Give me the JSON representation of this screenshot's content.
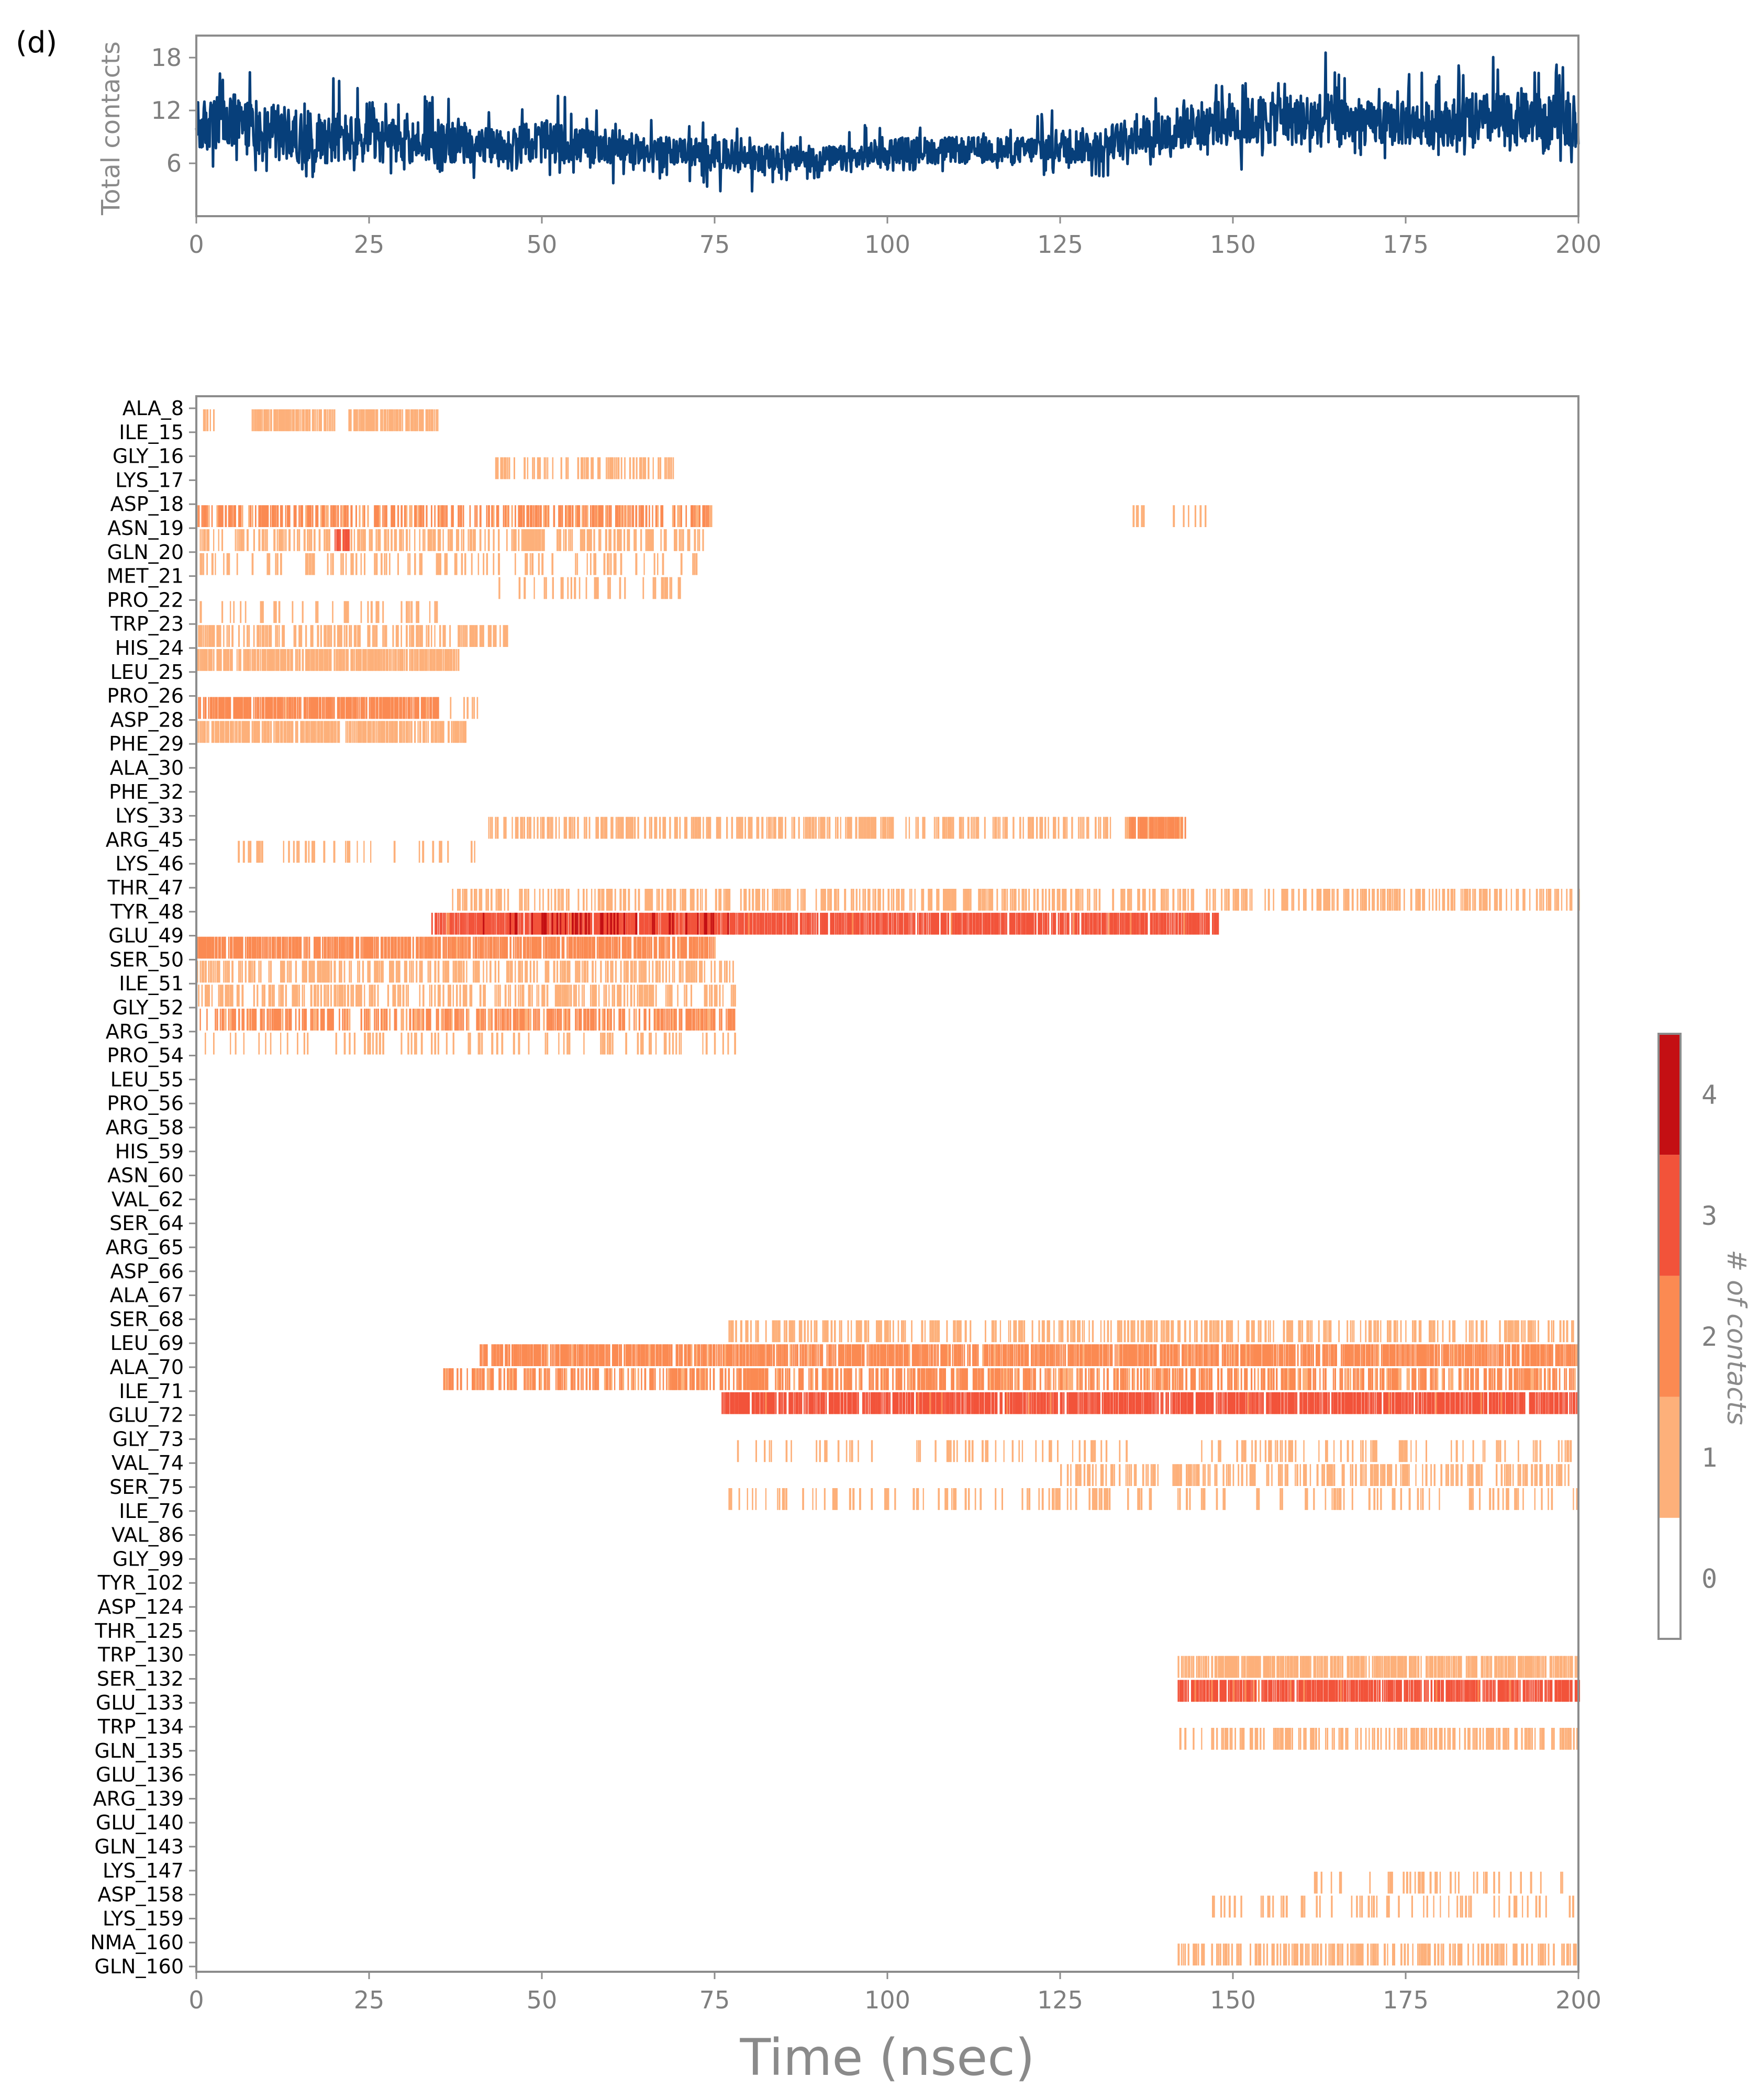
{
  "panel_label": "(d)",
  "colors": {
    "line": "#073f7a",
    "frame": "#8c8c8c",
    "tick_text": "#7f7f7f",
    "colorbar": [
      "#ffffff",
      "#fdb07a",
      "#fb8a52",
      "#f2533a",
      "#c40f13"
    ]
  },
  "chart_data": [
    {
      "type": "line",
      "title": "",
      "xlabel": "",
      "ylabel": "Total contacts",
      "xlim": [
        0,
        200
      ],
      "ylim": [
        0,
        20.5
      ],
      "xticks": [
        0,
        25,
        50,
        75,
        100,
        125,
        150,
        175,
        200
      ],
      "yticks": [
        6,
        12,
        18
      ],
      "grid": false,
      "series_envelope": {
        "x": [
          0,
          5,
          10,
          15,
          20,
          25,
          30,
          35,
          40,
          45,
          50,
          55,
          60,
          65,
          70,
          75,
          80,
          85,
          90,
          95,
          100,
          105,
          110,
          115,
          120,
          125,
          130,
          135,
          140,
          145,
          150,
          155,
          160,
          165,
          170,
          175,
          180,
          185,
          190,
          195,
          200
        ],
        "min": [
          6,
          5,
          5,
          4,
          5,
          4,
          5,
          3,
          4,
          5,
          4,
          5,
          3,
          4,
          4,
          3,
          2,
          4,
          4,
          5,
          5,
          5,
          5,
          5,
          4,
          5,
          4,
          5,
          6,
          6,
          5,
          6,
          6,
          7,
          6,
          6,
          7,
          6,
          6,
          7,
          5
        ],
        "max": [
          18,
          19,
          17,
          16,
          16,
          14,
          14,
          14,
          13,
          13,
          15,
          13,
          12,
          12,
          11,
          11,
          10,
          10,
          10,
          10,
          11,
          11,
          10,
          11,
          11,
          14,
          14,
          15,
          15,
          17,
          17,
          18,
          20,
          18,
          18,
          17,
          17,
          18,
          19,
          18,
          16
        ],
        "typical_low": [
          7,
          7,
          7,
          6,
          6,
          6,
          6,
          6,
          6,
          6,
          6,
          6,
          6,
          6,
          6,
          5,
          5,
          5,
          5,
          5,
          6,
          6,
          6,
          6,
          6,
          6,
          6,
          7,
          7,
          8,
          8,
          8,
          8,
          8,
          8,
          8,
          8,
          8,
          8,
          8,
          8
        ],
        "typical_high": [
          13,
          14,
          13,
          12,
          12,
          11,
          11,
          11,
          10,
          10,
          11,
          10,
          10,
          9,
          9,
          9,
          8,
          8,
          8,
          8,
          9,
          9,
          9,
          9,
          9,
          10,
          10,
          11,
          12,
          13,
          13,
          14,
          14,
          14,
          13,
          13,
          13,
          14,
          14,
          14,
          13
        ]
      }
    },
    {
      "type": "heatmap",
      "title": "",
      "xlabel": "Time (nsec)",
      "ylabel": "",
      "xlim": [
        0,
        200
      ],
      "xticks": [
        0,
        25,
        50,
        75,
        100,
        125,
        150,
        175,
        200
      ],
      "rows": [
        "ALA_8",
        "ILE_15",
        "GLY_16",
        "LYS_17",
        "ASP_18",
        "ASN_19",
        "GLN_20",
        "MET_21",
        "PRO_22",
        "TRP_23",
        "HIS_24",
        "LEU_25",
        "PRO_26",
        "ASP_28",
        "PHE_29",
        "ALA_30",
        "PHE_32",
        "LYS_33",
        "ARG_45",
        "LYS_46",
        "THR_47",
        "TYR_48",
        "GLU_49",
        "SER_50",
        "ILE_51",
        "GLY_52",
        "ARG_53",
        "PRO_54",
        "LEU_55",
        "PRO_56",
        "ARG_58",
        "HIS_59",
        "ASN_60",
        "VAL_62",
        "SER_64",
        "ARG_65",
        "ASP_66",
        "ALA_67",
        "SER_68",
        "LEU_69",
        "ALA_70",
        "ILE_71",
        "GLU_72",
        "GLY_73",
        "VAL_74",
        "SER_75",
        "ILE_76",
        "VAL_86",
        "GLY_99",
        "TYR_102",
        "ASP_124",
        "THR_125",
        "TRP_130",
        "SER_132",
        "GLU_133",
        "TRP_134",
        "GLN_135",
        "GLU_136",
        "ARG_139",
        "GLU_140",
        "GLN_143",
        "LYS_147",
        "ASP_158",
        "LYS_159",
        "NMA_160",
        "GLN_160"
      ],
      "row_axis_note": "each row label marks the boundary between two adjacent contact rows",
      "contact_segments": [
        {
          "between": [
            "ALA_8",
            "ILE_15"
          ],
          "start": 0,
          "end": 3,
          "level": 1,
          "density": "sparse"
        },
        {
          "between": [
            "ALA_8",
            "ILE_15"
          ],
          "start": 8,
          "end": 20,
          "level": 1,
          "density": "dense"
        },
        {
          "between": [
            "ALA_8",
            "ILE_15"
          ],
          "start": 22,
          "end": 35,
          "level": 1,
          "density": "dense"
        },
        {
          "between": [
            "GLY_16",
            "LYS_17"
          ],
          "start": 43,
          "end": 69,
          "level": 1,
          "density": "medium"
        },
        {
          "between": [
            "ASP_18",
            "ASN_19"
          ],
          "start": 0,
          "end": 75,
          "level": 2,
          "density": "medium"
        },
        {
          "between": [
            "ASP_18",
            "ASN_19"
          ],
          "start": 135,
          "end": 148,
          "level": 1,
          "density": "sparse"
        },
        {
          "between": [
            "ASN_19",
            "GLN_20"
          ],
          "start": 0,
          "end": 74,
          "level": 1,
          "density": "medium"
        },
        {
          "between": [
            "ASN_19",
            "GLN_20"
          ],
          "start": 20,
          "end": 22,
          "level": 3,
          "density": "dense"
        },
        {
          "between": [
            "GLN_20",
            "MET_21"
          ],
          "start": 0,
          "end": 75,
          "level": 1,
          "density": "sparse"
        },
        {
          "between": [
            "MET_21",
            "PRO_22"
          ],
          "start": 43,
          "end": 70,
          "level": 1,
          "density": "sparse"
        },
        {
          "between": [
            "PRO_22",
            "TRP_23"
          ],
          "start": 0,
          "end": 35,
          "level": 1,
          "density": "sparse"
        },
        {
          "between": [
            "TRP_23",
            "HIS_24"
          ],
          "start": 0,
          "end": 45,
          "level": 1,
          "density": "medium"
        },
        {
          "between": [
            "HIS_24",
            "LEU_25"
          ],
          "start": 0,
          "end": 38,
          "level": 1,
          "density": "dense"
        },
        {
          "between": [
            "PRO_26",
            "ASP_28"
          ],
          "start": 0,
          "end": 35,
          "level": 2,
          "density": "dense"
        },
        {
          "between": [
            "PRO_26",
            "ASP_28"
          ],
          "start": 35,
          "end": 41,
          "level": 1,
          "density": "sparse"
        },
        {
          "between": [
            "ASP_28",
            "PHE_29"
          ],
          "start": 0,
          "end": 39,
          "level": 1,
          "density": "dense"
        },
        {
          "between": [
            "LYS_33",
            "ARG_45"
          ],
          "start": 42,
          "end": 143,
          "level": 1,
          "density": "medium"
        },
        {
          "between": [
            "LYS_33",
            "ARG_45"
          ],
          "start": 135,
          "end": 143,
          "level": 2,
          "density": "dense"
        },
        {
          "between": [
            "ARG_45",
            "LYS_46"
          ],
          "start": 6,
          "end": 42,
          "level": 1,
          "density": "sparse"
        },
        {
          "between": [
            "THR_47",
            "TYR_48"
          ],
          "start": 37,
          "end": 200,
          "level": 1,
          "density": "medium"
        },
        {
          "between": [
            "TYR_48",
            "GLU_49"
          ],
          "start": 34,
          "end": 148,
          "level": 3,
          "density": "dense"
        },
        {
          "between": [
            "TYR_48",
            "GLU_49"
          ],
          "start": 40,
          "end": 78,
          "level": 4,
          "density": "sparse"
        },
        {
          "between": [
            "GLU_49",
            "SER_50"
          ],
          "start": 0,
          "end": 75,
          "level": 2,
          "density": "dense"
        },
        {
          "between": [
            "SER_50",
            "ILE_51"
          ],
          "start": 0,
          "end": 78,
          "level": 1,
          "density": "medium"
        },
        {
          "between": [
            "ILE_51",
            "GLY_52"
          ],
          "start": 0,
          "end": 78,
          "level": 1,
          "density": "medium"
        },
        {
          "between": [
            "GLY_52",
            "ARG_53"
          ],
          "start": 0,
          "end": 78,
          "level": 2,
          "density": "medium"
        },
        {
          "between": [
            "ARG_53",
            "PRO_54"
          ],
          "start": 0,
          "end": 78,
          "level": 1,
          "density": "sparse"
        },
        {
          "between": [
            "SER_68",
            "LEU_69"
          ],
          "start": 77,
          "end": 200,
          "level": 1,
          "density": "medium"
        },
        {
          "between": [
            "LEU_69",
            "ALA_70"
          ],
          "start": 41,
          "end": 200,
          "level": 2,
          "density": "dense"
        },
        {
          "between": [
            "ALA_70",
            "ILE_71"
          ],
          "start": 35,
          "end": 200,
          "level": 2,
          "density": "medium"
        },
        {
          "between": [
            "ILE_71",
            "GLU_72"
          ],
          "start": 76,
          "end": 200,
          "level": 3,
          "density": "dense"
        },
        {
          "between": [
            "GLY_73",
            "VAL_74"
          ],
          "start": 78,
          "end": 200,
          "level": 1,
          "density": "sparse"
        },
        {
          "between": [
            "VAL_74",
            "SER_75"
          ],
          "start": 125,
          "end": 200,
          "level": 1,
          "density": "medium"
        },
        {
          "between": [
            "SER_75",
            "ILE_76"
          ],
          "start": 77,
          "end": 200,
          "level": 1,
          "density": "sparse"
        },
        {
          "between": [
            "TRP_130",
            "SER_132"
          ],
          "start": 142,
          "end": 200,
          "level": 1,
          "density": "dense"
        },
        {
          "between": [
            "SER_132",
            "GLU_133"
          ],
          "start": 142,
          "end": 200,
          "level": 3,
          "density": "dense"
        },
        {
          "between": [
            "TRP_134",
            "GLN_135"
          ],
          "start": 142,
          "end": 200,
          "level": 1,
          "density": "medium"
        },
        {
          "between": [
            "LYS_147",
            "ASP_158"
          ],
          "start": 161,
          "end": 200,
          "level": 1,
          "density": "sparse"
        },
        {
          "between": [
            "ASP_158",
            "LYS_159"
          ],
          "start": 146,
          "end": 200,
          "level": 1,
          "density": "sparse"
        },
        {
          "between": [
            "NMA_160",
            "GLN_160"
          ],
          "start": 142,
          "end": 200,
          "level": 1,
          "density": "medium"
        }
      ]
    }
  ],
  "colorbar": {
    "label": "# of contacts",
    "ticks": [
      "0",
      "1",
      "2",
      "3",
      "4"
    ]
  }
}
